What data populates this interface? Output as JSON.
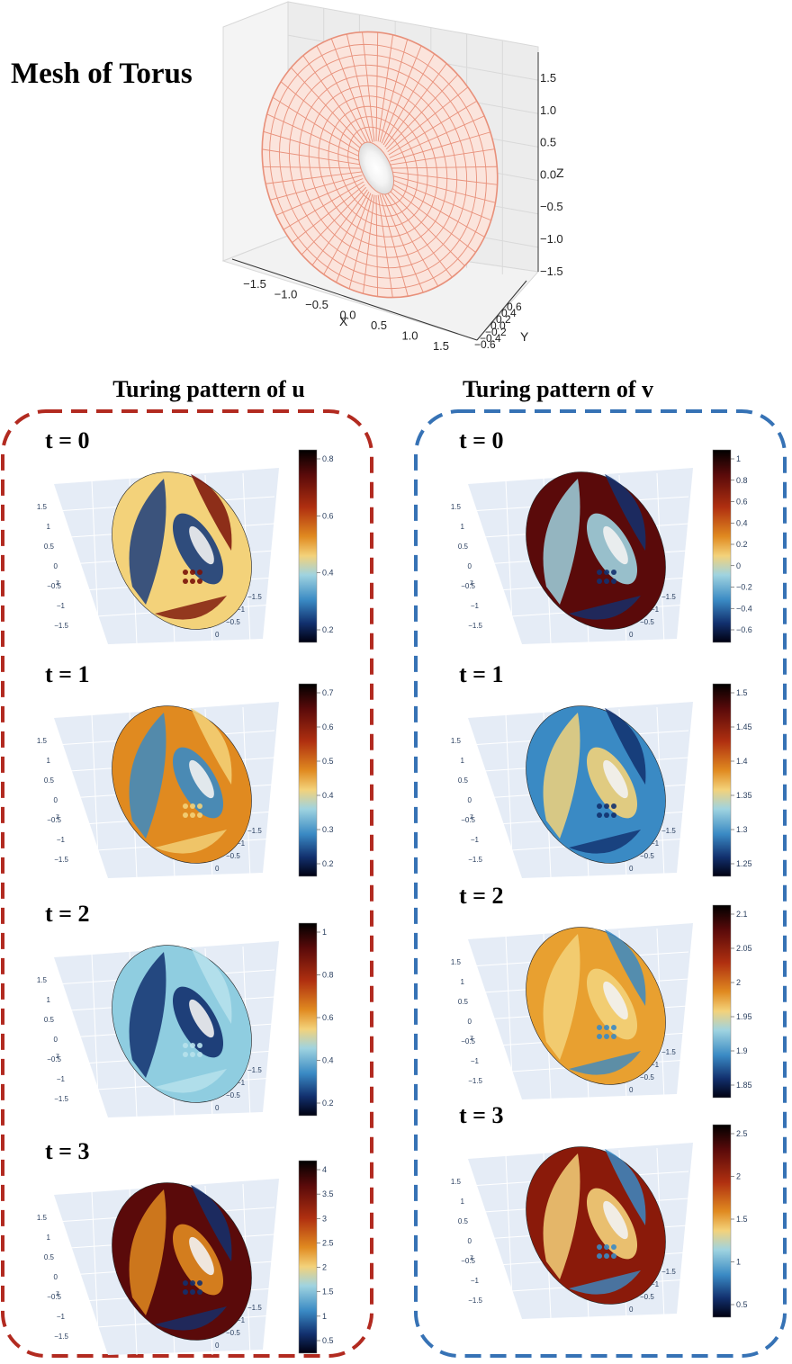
{
  "main_title": "Mesh of Torus",
  "mesh": {
    "x_label": "X",
    "y_label": "Y",
    "z_label": "Z",
    "x_ticks": [
      "−1.5",
      "−1.0",
      "−0.5",
      "0.0",
      "0.5",
      "1.0",
      "1.5"
    ],
    "y_ticks": [
      "0.6",
      "0.4",
      "0.2",
      "0.0",
      "−0.2",
      "−0.4",
      "−0.6"
    ],
    "z_ticks": [
      "1.5",
      "1.0",
      "0.5",
      "0.0",
      "−0.5",
      "−1.0",
      "−1.5"
    ]
  },
  "columns": [
    {
      "title": "Turing pattern of u",
      "border_color": "#b22a20"
    },
    {
      "title": "Turing pattern of v",
      "border_color": "#3672b5"
    }
  ],
  "small_axes": {
    "z_ticks": [
      "1.5",
      "1",
      "0.5",
      "0",
      "−0.5",
      "−1",
      "−1.5"
    ],
    "z_label": "z",
    "x_ticks": [
      "−1.5",
      "−1",
      "−0.5",
      "0"
    ],
    "y_ticks": [
      "1.5",
      "1",
      "0.5",
      "0"
    ]
  },
  "panels": [
    {
      "label": "t = 0",
      "colorbar_ticks": [
        "0.8",
        "0.6",
        "0.4",
        "0.2"
      ]
    },
    {
      "label": "t = 0",
      "colorbar_ticks": [
        "1",
        "0.8",
        "0.6",
        "0.4",
        "0.2",
        "0",
        "−0.2",
        "−0.4",
        "−0.6"
      ]
    },
    {
      "label": "t = 1",
      "colorbar_ticks": [
        "0.7",
        "0.6",
        "0.5",
        "0.4",
        "0.3",
        "0.2"
      ]
    },
    {
      "label": "t = 1",
      "colorbar_ticks": [
        "1.5",
        "1.45",
        "1.4",
        "1.35",
        "1.3",
        "1.25"
      ]
    },
    {
      "label": "t = 2",
      "colorbar_ticks": [
        "1",
        "0.8",
        "0.6",
        "0.4",
        "0.2"
      ]
    },
    {
      "label": "t = 2",
      "colorbar_ticks": [
        "2.1",
        "2.05",
        "2",
        "1.95",
        "1.9",
        "1.85"
      ]
    },
    {
      "label": "t = 3",
      "colorbar_ticks": [
        "4",
        "3.5",
        "3",
        "2.5",
        "2",
        "1.5",
        "1",
        "0.5"
      ]
    },
    {
      "label": "t = 3",
      "colorbar_ticks": [
        "2.5",
        "2",
        "1.5",
        "1",
        "0.5"
      ]
    }
  ],
  "colors": {
    "mesh_line": "#e8907a",
    "scene_bg": "#e5ecf6",
    "colormap": [
      "#000000",
      "#5a0a0a",
      "#b03010",
      "#e08a20",
      "#f3d27a",
      "#9fd3e0",
      "#3a8ac4",
      "#12306e",
      "#000010"
    ]
  }
}
